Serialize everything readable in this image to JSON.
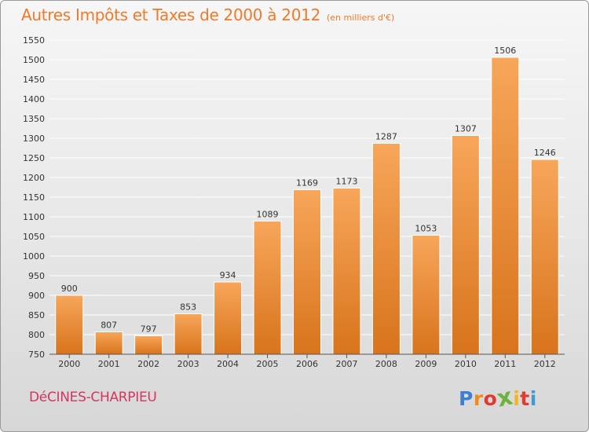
{
  "chart_data": {
    "type": "bar",
    "title": "Autres Impôts et Taxes de 2000 à 2012",
    "subtitle": "(en milliers d'€)",
    "xlabel": "",
    "ylabel": "",
    "categories": [
      "2000",
      "2001",
      "2002",
      "2003",
      "2004",
      "2005",
      "2006",
      "2007",
      "2008",
      "2009",
      "2010",
      "2011",
      "2012"
    ],
    "values": [
      900,
      807,
      797,
      853,
      934,
      1089,
      1169,
      1173,
      1287,
      1053,
      1307,
      1506,
      1246
    ],
    "ylim": [
      750,
      1550
    ],
    "yticks": [
      750,
      800,
      850,
      900,
      950,
      1000,
      1050,
      1100,
      1150,
      1200,
      1250,
      1300,
      1350,
      1400,
      1450,
      1500,
      1550
    ],
    "grid": true,
    "legend": "none",
    "data_labels": true
  },
  "footer": {
    "place": "DéCINES-CHARPIEU",
    "logo_letters": [
      "P",
      "r",
      "o",
      "x",
      "i",
      "t",
      "i"
    ]
  },
  "colors": {
    "title": "#f07a2a",
    "place": "#d4365e",
    "bar_light": "#f7a65a",
    "bar_dark": "#d8741c",
    "grid": "#ffffff",
    "logo": [
      "#3d7fd0",
      "#f08a1e",
      "#e23a2f",
      "#6ab43e",
      "#f2b51d",
      "#e23a2f",
      "#3d9bd6"
    ]
  }
}
